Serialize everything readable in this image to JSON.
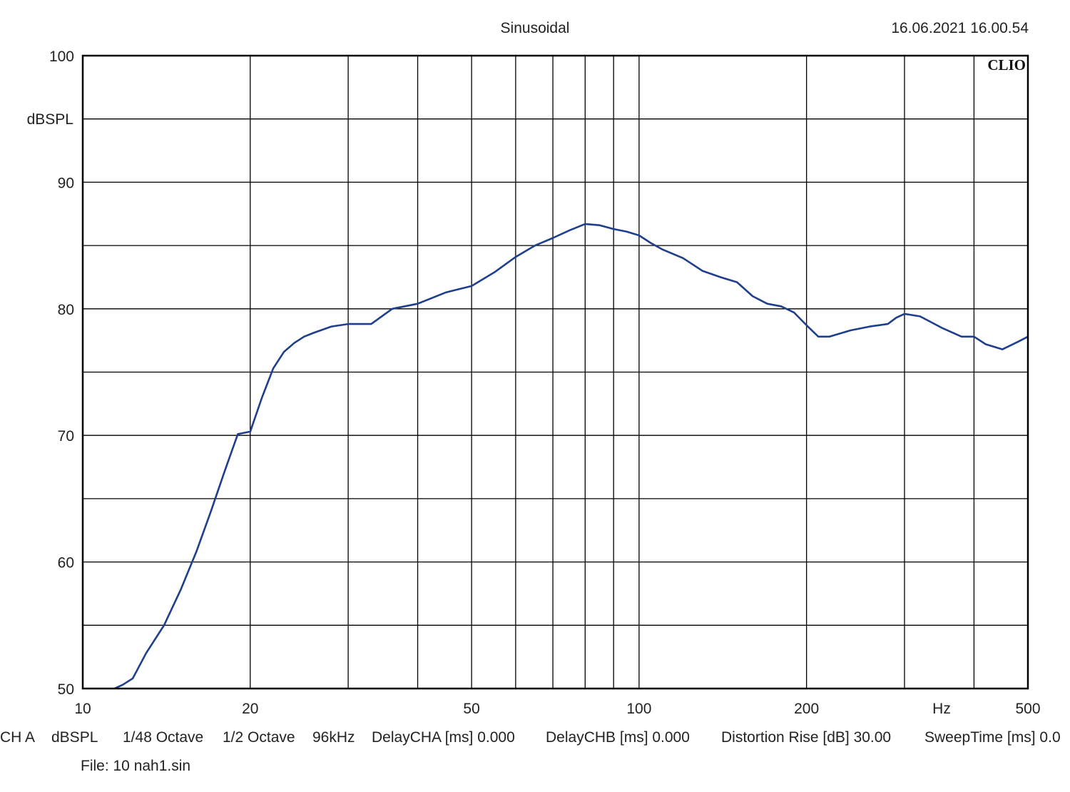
{
  "header": {
    "title": "Sinusoidal",
    "timestamp": "16.06.2021 16.00.54",
    "brand": "CLIO"
  },
  "footer": {
    "params": [
      "CH A",
      "dBSPL",
      "1/48 Octave",
      "1/2 Octave",
      "96kHz",
      "DelayCHA [ms] 0.000",
      "DelayCHB [ms] 0.000",
      "Distortion Rise [dB] 30.00",
      "SweepTime [ms] 0.0"
    ],
    "file": "File: 10 nah1.sin"
  },
  "chart_data": {
    "type": "line",
    "title": "Sinusoidal",
    "xlabel": "Hz",
    "ylabel": "dBSPL",
    "xscale": "log",
    "xlim": [
      10,
      500
    ],
    "ylim": [
      50,
      100
    ],
    "x_tick_labels": [
      {
        "value": 10,
        "label": "10"
      },
      {
        "value": 20,
        "label": "20"
      },
      {
        "value": 50,
        "label": "50"
      },
      {
        "value": 100,
        "label": "100"
      },
      {
        "value": 200,
        "label": "200"
      },
      {
        "value": 500,
        "label": "500"
      }
    ],
    "x_gridlines": [
      20,
      30,
      40,
      50,
      60,
      70,
      80,
      90,
      100,
      200,
      300,
      400
    ],
    "y_tick_labels": [
      {
        "value": 100,
        "label": "100"
      },
      {
        "value": 90,
        "label": "90"
      },
      {
        "value": 80,
        "label": "80"
      },
      {
        "value": 70,
        "label": "70"
      },
      {
        "value": 60,
        "label": "60"
      },
      {
        "value": 50,
        "label": "50"
      }
    ],
    "y_gridlines": [
      55,
      60,
      65,
      70,
      75,
      80,
      85,
      90,
      95
    ],
    "grid": true,
    "series": [
      {
        "color": "#1f3f8c",
        "x": [
          11.4,
          11.8,
          12.3,
          13.0,
          14.0,
          15.0,
          16.0,
          17.0,
          18.0,
          19.0,
          20.0,
          21.0,
          22.0,
          23.0,
          24.0,
          25.0,
          26.0,
          28.0,
          30.0,
          33.0,
          36.0,
          40.0,
          45.0,
          50.0,
          55.0,
          60.0,
          65.0,
          70.0,
          75.0,
          80.0,
          85.0,
          90.0,
          95.0,
          100.0,
          105.0,
          110.0,
          120.0,
          130.0,
          140.0,
          150.0,
          160.0,
          170.0,
          180.0,
          190.0,
          200.0,
          210.0,
          220.0,
          240.0,
          260.0,
          280.0,
          290.0,
          300.0,
          320.0,
          350.0,
          380.0,
          400.0,
          420.0,
          450.0,
          480.0,
          500.0
        ],
        "y": [
          50.0,
          50.3,
          50.8,
          52.8,
          55.0,
          57.8,
          60.8,
          64.0,
          67.2,
          70.1,
          70.3,
          73.0,
          75.3,
          76.6,
          77.3,
          77.8,
          78.1,
          78.6,
          78.8,
          78.8,
          80.0,
          80.4,
          81.3,
          81.8,
          82.9,
          84.1,
          85.0,
          85.6,
          86.2,
          86.7,
          86.6,
          86.3,
          86.1,
          85.8,
          85.2,
          84.7,
          84.0,
          83.0,
          82.5,
          82.1,
          81.0,
          80.4,
          80.2,
          79.7,
          78.7,
          77.8,
          77.8,
          78.3,
          78.6,
          78.8,
          79.3,
          79.6,
          79.4,
          78.5,
          77.8,
          77.8,
          77.2,
          76.8,
          77.4,
          77.8
        ]
      }
    ]
  }
}
